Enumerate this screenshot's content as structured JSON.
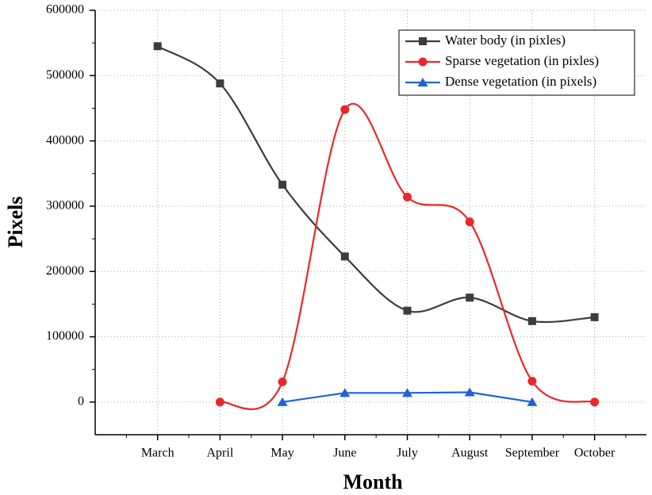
{
  "chart_data": {
    "type": "line",
    "x_label": "Month",
    "y_label": "Pixels",
    "categories": [
      "March",
      "April",
      "May",
      "June",
      "July",
      "August",
      "September",
      "October"
    ],
    "series": [
      {
        "name": "Water body (in pixles)",
        "color": "#3c3c3c",
        "marker": "square",
        "smooth": true,
        "values": [
          545000,
          488000,
          333000,
          223000,
          140000,
          160000,
          124000,
          130000
        ]
      },
      {
        "name": "Sparse vegetation (in pixles)",
        "color": "#e8282b",
        "marker": "circle",
        "smooth": true,
        "values": [
          null,
          0,
          31000,
          448000,
          314000,
          276000,
          32000,
          0
        ]
      },
      {
        "name": "Dense vegetation (in pixels)",
        "color": "#1e64d2",
        "marker": "triangle",
        "smooth": false,
        "values": [
          null,
          null,
          0,
          14000,
          14000,
          15000,
          0,
          null
        ]
      }
    ],
    "ylim": [
      -50000,
      600000
    ],
    "yticks": [
      0,
      100000,
      200000,
      300000,
      400000,
      500000,
      600000
    ],
    "grid": true,
    "legend": "upper right"
  }
}
